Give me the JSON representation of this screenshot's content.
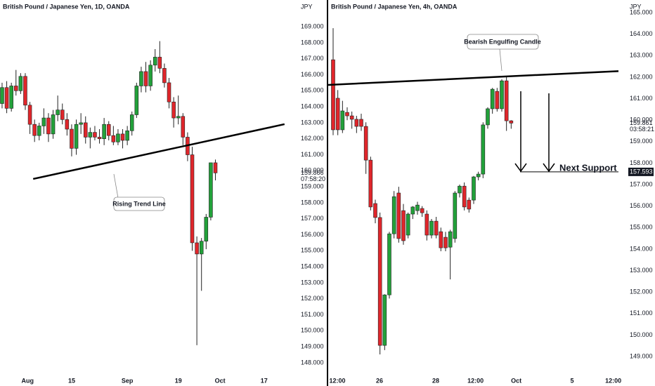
{
  "chart_data": [
    {
      "type": "candlestick",
      "title": "British Pound / Japanese Yen, 1D, OANDA",
      "y_unit": "JPY",
      "up_color": "#22a13a",
      "down_color": "#e0262b",
      "wick_color": "#222222",
      "x": [
        0,
        1,
        2,
        3,
        4,
        5,
        6,
        7,
        8,
        9,
        10,
        11,
        12,
        13,
        14,
        15,
        16,
        17,
        18,
        19,
        20,
        21,
        22,
        23,
        24,
        25,
        26,
        27,
        28,
        29,
        30,
        31,
        32,
        33,
        34,
        35,
        36,
        37,
        38,
        39,
        40,
        41,
        42,
        43,
        44,
        45,
        46
      ],
      "open": [
        164.2,
        165.2,
        163.9,
        165.3,
        165.0,
        165.9,
        164.1,
        162.9,
        162.2,
        162.8,
        163.3,
        162.3,
        163.5,
        163.8,
        163.2,
        162.6,
        161.4,
        162.9,
        163.0,
        162.1,
        162.4,
        162.1,
        162.0,
        162.9,
        162.2,
        161.8,
        162.3,
        161.9,
        162.5,
        163.5,
        165.3,
        166.2,
        165.3,
        166.6,
        167.1,
        166.4,
        165.5,
        164.3,
        163.3,
        163.4,
        162.1,
        161.0,
        155.5,
        154.8,
        155.6,
        157.1,
        160.5
      ],
      "high": [
        165.5,
        165.6,
        165.5,
        166.3,
        166.1,
        166.1,
        164.3,
        163.2,
        163.0,
        163.9,
        163.6,
        163.8,
        164.7,
        164.2,
        163.6,
        162.9,
        163.2,
        163.6,
        163.4,
        162.7,
        162.8,
        162.6,
        163.3,
        163.1,
        162.8,
        162.6,
        162.6,
        162.8,
        163.7,
        165.5,
        166.5,
        166.8,
        166.9,
        167.6,
        168.1,
        166.7,
        165.8,
        164.6,
        164.7,
        163.6,
        162.4,
        161.5,
        155.9,
        155.8,
        157.3,
        160.5,
        160.7
      ],
      "low": [
        163.9,
        163.6,
        163.7,
        164.7,
        164.8,
        163.8,
        162.3,
        161.8,
        161.9,
        162.3,
        161.8,
        162.0,
        163.1,
        162.9,
        162.2,
        160.9,
        161.0,
        162.3,
        161.7,
        161.4,
        161.9,
        161.7,
        161.6,
        161.9,
        161.6,
        161.6,
        161.4,
        161.6,
        162.2,
        163.3,
        164.9,
        164.9,
        165.0,
        166.2,
        166.1,
        165.2,
        163.9,
        162.7,
        162.9,
        161.6,
        160.6,
        155.0,
        149.1,
        152.5,
        155.1,
        156.9,
        159.4
      ],
      "close": [
        165.2,
        163.9,
        165.3,
        165.0,
        165.9,
        164.1,
        162.9,
        162.2,
        162.8,
        163.3,
        162.3,
        163.5,
        163.8,
        163.2,
        162.6,
        161.4,
        162.9,
        163.0,
        162.1,
        162.4,
        162.1,
        162.0,
        162.9,
        162.2,
        161.8,
        162.3,
        161.9,
        162.5,
        163.5,
        165.3,
        166.2,
        165.3,
        166.6,
        167.1,
        166.4,
        165.5,
        164.3,
        163.3,
        163.4,
        162.1,
        161.0,
        155.5,
        154.8,
        155.6,
        157.1,
        160.5,
        159.866
      ],
      "xlim": [
        -0.45,
        63.2
      ],
      "ylim": [
        147.21,
        170.67
      ],
      "xticks": [
        {
          "value": 5.5,
          "label": "Aug"
        },
        {
          "value": 15,
          "label": "15"
        },
        {
          "value": 27,
          "label": "Sep"
        },
        {
          "value": 38,
          "label": "19"
        },
        {
          "value": 47,
          "label": "Oct"
        },
        {
          "value": 56.5,
          "label": "17"
        }
      ],
      "yticks": [
        {
          "value": 148,
          "label": "148.000"
        },
        {
          "value": 149,
          "label": "149.000"
        },
        {
          "value": 150,
          "label": "150.000"
        },
        {
          "value": 151,
          "label": "151.000"
        },
        {
          "value": 152,
          "label": "152.000"
        },
        {
          "value": 153,
          "label": "153.000"
        },
        {
          "value": 154,
          "label": "154.000"
        },
        {
          "value": 155,
          "label": "155.000"
        },
        {
          "value": 156,
          "label": "156.000"
        },
        {
          "value": 157,
          "label": "157.000"
        },
        {
          "value": 158,
          "label": "158.000"
        },
        {
          "value": 159,
          "label": "159.000"
        },
        {
          "value": 160,
          "label": "160.000"
        },
        {
          "value": 161,
          "label": "161.000"
        },
        {
          "value": 162,
          "label": "162.000"
        },
        {
          "value": 163,
          "label": "163.000"
        },
        {
          "value": 164,
          "label": "164.000"
        },
        {
          "value": 165,
          "label": "165.000"
        },
        {
          "value": 166,
          "label": "166.000"
        },
        {
          "value": 167,
          "label": "167.000"
        },
        {
          "value": 168,
          "label": "168.000"
        },
        {
          "value": 169,
          "label": "169.000"
        }
      ],
      "trend_line": {
        "x": [
          6.7,
          60.9
        ],
        "y": [
          159.49,
          162.91
        ]
      },
      "annotation": "Rising Trend Line",
      "last_price": 159.866,
      "countdown": "07:58:20"
    },
    {
      "type": "candlestick",
      "title": "British Pound / Japanese Yen, 4h, OANDA",
      "y_unit": "JPY",
      "up_color": "#22a13a",
      "down_color": "#e0262b",
      "wick_color": "#222222",
      "x": [
        0,
        1,
        2,
        3,
        4,
        5,
        6,
        7,
        8,
        9,
        10,
        11,
        12,
        13,
        14,
        15,
        16,
        17,
        18,
        19,
        20,
        21,
        22,
        23,
        24,
        25,
        26,
        27,
        28,
        29,
        30,
        31,
        32,
        33,
        34,
        35,
        36,
        37,
        38
      ],
      "open": [
        162.81,
        161.02,
        159.55,
        160.36,
        160.2,
        160.04,
        160.04,
        159.71,
        158.14,
        156.12,
        155.47,
        149.52,
        151.87,
        154.71,
        156.61,
        155.79,
        154.65,
        155.63,
        155.79,
        155.89,
        155.63,
        154.65,
        155.3,
        154.81,
        154.55,
        154.09,
        154.49,
        156.61,
        156.93,
        156.28,
        156.28,
        157.36,
        157.49,
        159.78,
        160.53,
        161.34,
        160.53,
        161.83,
        159.97
      ],
      "high": [
        164.28,
        161.4,
        160.9,
        160.6,
        160.4,
        160.2,
        160.3,
        159.9,
        158.3,
        156.3,
        155.7,
        151.9,
        154.8,
        156.7,
        156.9,
        156.1,
        155.7,
        156.0,
        156.2,
        156.0,
        155.8,
        155.4,
        155.5,
        155.0,
        154.8,
        154.9,
        156.7,
        157.0,
        157.1,
        156.4,
        157.4,
        157.6,
        159.9,
        160.6,
        161.5,
        161.5,
        161.9,
        162.0,
        160.0
      ],
      "low": [
        159.3,
        159.3,
        159.4,
        160.0,
        159.6,
        159.4,
        159.5,
        157.5,
        155.8,
        155.2,
        149.1,
        149.3,
        151.7,
        154.5,
        154.3,
        154.2,
        154.5,
        155.4,
        155.6,
        155.5,
        154.4,
        154.5,
        154.5,
        153.9,
        153.9,
        152.59,
        154.3,
        156.4,
        155.8,
        155.7,
        156.1,
        157.2,
        157.3,
        159.6,
        160.3,
        160.4,
        160.4,
        159.5,
        159.6
      ],
      "close": [
        159.55,
        159.55,
        160.43,
        160.2,
        160.04,
        159.71,
        159.71,
        158.14,
        155.96,
        155.47,
        149.52,
        151.87,
        154.71,
        156.44,
        154.49,
        154.39,
        155.63,
        155.96,
        156.05,
        155.69,
        154.65,
        155.3,
        154.65,
        154.06,
        154.06,
        154.81,
        156.61,
        156.93,
        155.96,
        155.86,
        157.36,
        157.49,
        159.78,
        160.53,
        161.44,
        160.53,
        161.83,
        159.97,
        159.861
      ],
      "xlim": [
        -1.05,
        60.9
      ],
      "ylim": [
        148.12,
        165.59
      ],
      "xticks": [
        {
          "value": 0.9,
          "label": "12:00"
        },
        {
          "value": 9.9,
          "label": "26"
        },
        {
          "value": 21.9,
          "label": "28"
        },
        {
          "value": 30.4,
          "label": "12:00"
        },
        {
          "value": 39.1,
          "label": "Oct"
        },
        {
          "value": 51,
          "label": "5"
        },
        {
          "value": 59.8,
          "label": "12:00"
        }
      ],
      "yticks": [
        {
          "value": 149,
          "label": "149.000"
        },
        {
          "value": 150,
          "label": "150.000"
        },
        {
          "value": 151,
          "label": "151.000"
        },
        {
          "value": 152,
          "label": "152.000"
        },
        {
          "value": 153,
          "label": "153.000"
        },
        {
          "value": 154,
          "label": "154.000"
        },
        {
          "value": 155,
          "label": "155.000"
        },
        {
          "value": 156,
          "label": "156.000"
        },
        {
          "value": 157,
          "label": "157.000"
        },
        {
          "value": 158,
          "label": "158.000"
        },
        {
          "value": 159,
          "label": "159.000"
        },
        {
          "value": 160,
          "label": "160.000"
        },
        {
          "value": 161,
          "label": "161.000"
        },
        {
          "value": 162,
          "label": "162.000"
        },
        {
          "value": 163,
          "label": "163.000"
        },
        {
          "value": 164,
          "label": "164.000"
        },
        {
          "value": 165,
          "label": "165.000"
        }
      ],
      "trend_line": {
        "x": [
          -1.05,
          60.9
        ],
        "y": [
          161.64,
          162.28
        ]
      },
      "annotation": "Bearish Engulfing Candle",
      "support": {
        "label": "Next Support",
        "value": 157.593,
        "x": 39.9
      },
      "last_price": 159.861,
      "countdown": "03:58:21"
    }
  ]
}
